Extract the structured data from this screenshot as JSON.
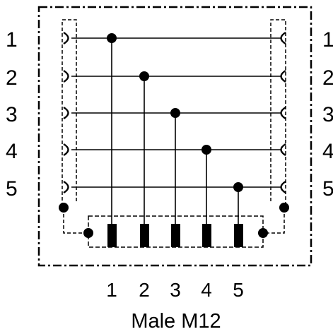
{
  "diagram": {
    "left_pins": [
      "1",
      "2",
      "3",
      "4",
      "5"
    ],
    "right_pins": [
      "1",
      "2",
      "3",
      "4",
      "5"
    ],
    "male_pins": [
      "1",
      "2",
      "3",
      "4",
      "5"
    ],
    "caption": "Male M12",
    "line_color": "#000000",
    "background": "#ffffff"
  }
}
